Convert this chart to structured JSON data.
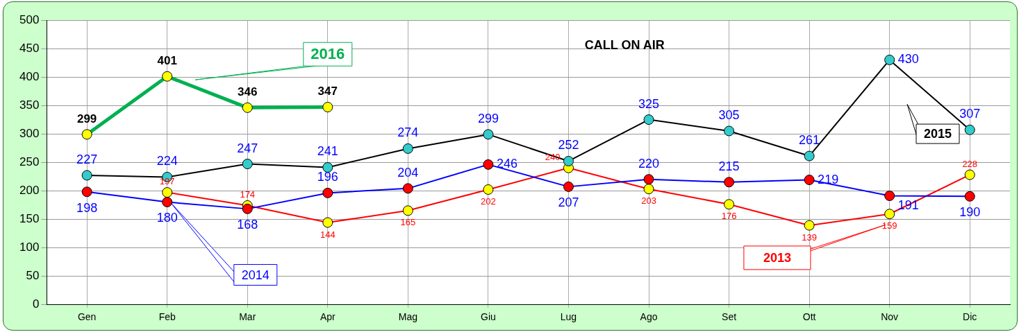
{
  "chart_data": {
    "type": "line",
    "title": "CALL ON AIR",
    "categories": [
      "Gen",
      "Feb",
      "Mar",
      "Apr",
      "Mag",
      "Giu",
      "Lug",
      "Ago",
      "Set",
      "Ott",
      "Nov",
      "Dic"
    ],
    "series": [
      {
        "name": "2016",
        "color": "#00b050",
        "values": [
          299,
          401,
          346,
          347,
          null,
          null,
          null,
          null,
          null,
          null,
          null,
          null
        ]
      },
      {
        "name": "2015",
        "color": "#000000",
        "values": [
          227,
          224,
          247,
          241,
          274,
          299,
          252,
          325,
          305,
          261,
          430,
          307
        ]
      },
      {
        "name": "2014",
        "color": "#0000ff",
        "values": [
          198,
          180,
          168,
          196,
          204,
          246,
          207,
          220,
          215,
          219,
          191,
          190
        ]
      },
      {
        "name": "2013",
        "color": "#ff0000",
        "values": [
          null,
          197,
          174,
          144,
          165,
          202,
          240,
          203,
          176,
          139,
          159,
          228
        ]
      }
    ],
    "ylim": [
      0,
      500
    ],
    "yticks": [
      0,
      50,
      100,
      150,
      200,
      250,
      300,
      350,
      400,
      450,
      500
    ],
    "grid": true,
    "legend": false,
    "marker": "circle",
    "data_labels": true
  }
}
